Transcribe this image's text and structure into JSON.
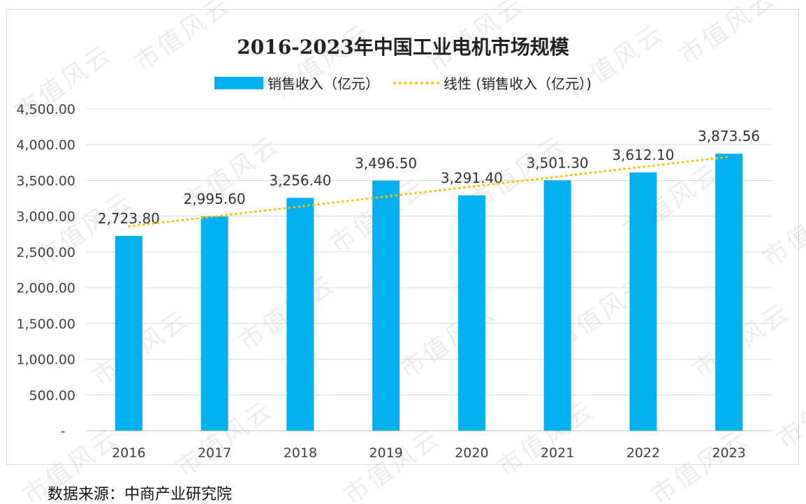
{
  "watermark_text": "市值风云",
  "source": "数据来源：中商产业研究院",
  "colors": {
    "bar": "#00b0f0",
    "trend": "#ffc000",
    "grid": "#d9d9d9",
    "axis_text": "#404040"
  },
  "chart_data": {
    "type": "bar",
    "title": "2016-2023年中国工业电机市场规模",
    "categories": [
      "2016",
      "2017",
      "2018",
      "2019",
      "2020",
      "2021",
      "2022",
      "2023"
    ],
    "series": [
      {
        "name": "销售收入（亿元）",
        "values": [
          2723.8,
          2995.6,
          3256.4,
          3496.5,
          3291.4,
          3501.3,
          3612.1,
          3873.56
        ]
      }
    ],
    "data_labels": [
      "2,723.80",
      "2,995.60",
      "3,256.40",
      "3,496.50",
      "3,291.40",
      "3,501.30",
      "3,612.10",
      "3,873.56"
    ],
    "trendline": {
      "name": "线性 (销售收入（亿元）)",
      "type": "linear",
      "of_series": "销售收入（亿元）"
    },
    "yticks": [
      "-",
      "500.00",
      "1,000.00",
      "1,500.00",
      "2,000.00",
      "2,500.00",
      "3,000.00",
      "3,500.00",
      "4,000.00",
      "4,500.00"
    ],
    "ylim": [
      0,
      4500
    ],
    "xlabel": "",
    "ylabel": "",
    "legend": "top",
    "grid": true
  }
}
